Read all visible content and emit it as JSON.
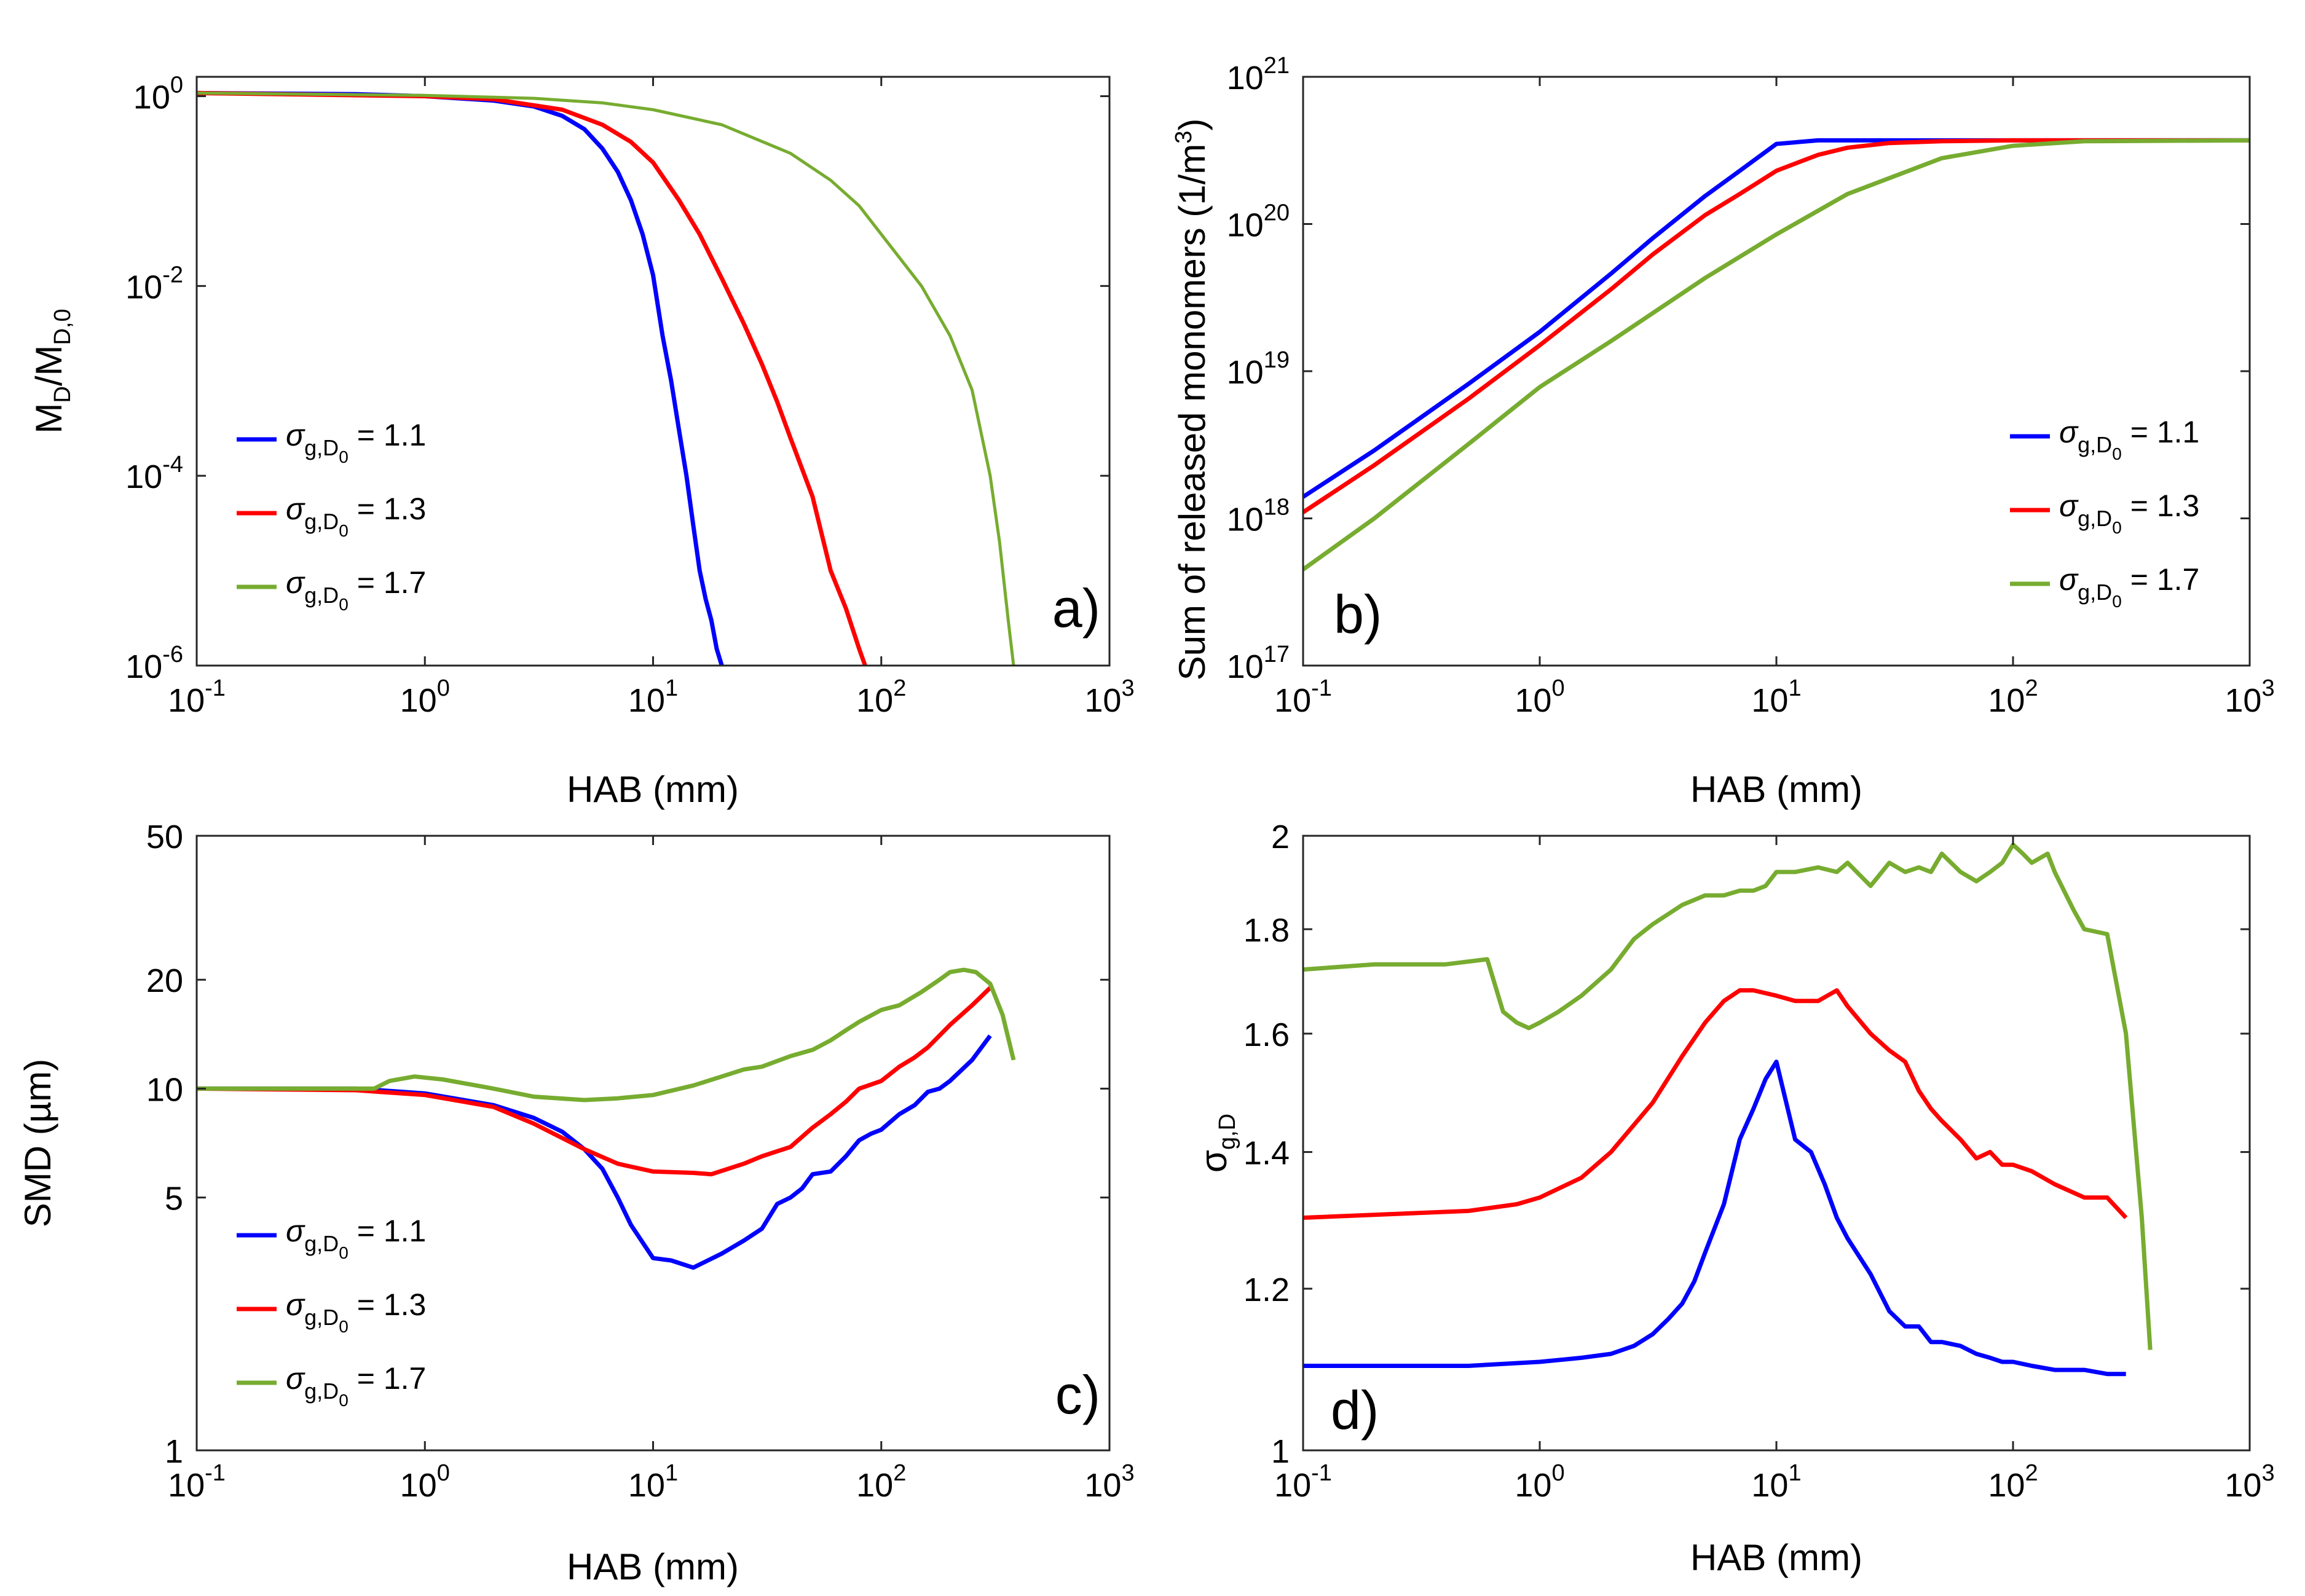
{
  "colors": {
    "series1": "#0000ff",
    "series2": "#ff0000",
    "series3": "#77ac30"
  },
  "legend_value_prefix": "= ",
  "chart_data": [
    {
      "id": "a",
      "type": "line",
      "panel_label": "a)",
      "xlabel": "HAB (mm)",
      "ylabel_main": "M",
      "ylabel_sub1": "D",
      "ylabel_slash": "/M",
      "ylabel_sub2": "D,0",
      "xscale": "log",
      "yscale": "log",
      "xlim": [
        0.1,
        1000
      ],
      "ylim": [
        1e-06,
        1.6
      ],
      "x_ticks": [
        {
          "b": "10",
          "e": "-1"
        },
        {
          "b": "10",
          "e": "0"
        },
        {
          "b": "10",
          "e": "1"
        },
        {
          "b": "10",
          "e": "2"
        },
        {
          "b": "10",
          "e": "3"
        }
      ],
      "y_ticks": [
        {
          "b": "10",
          "e": "-6"
        },
        {
          "b": "10",
          "e": "-4"
        },
        {
          "b": "10",
          "e": "-2"
        },
        {
          "b": "10",
          "e": "0"
        }
      ],
      "legend_position": "center-left",
      "series": [
        {
          "name": "σg,D0 = 1.1",
          "sigma": "σ",
          "sub": "g,D",
          "subsub": "0",
          "value": "1.1",
          "color": "#0000ff",
          "x": [
            0.1,
            0.5,
            1,
            2,
            3,
            4,
            5,
            6,
            7,
            8,
            9,
            10,
            11,
            12,
            13,
            14,
            15,
            16,
            17,
            18,
            19,
            20
          ],
          "y": [
            1.08,
            1.05,
            1.0,
            0.9,
            0.78,
            0.62,
            0.45,
            0.28,
            0.16,
            0.08,
            0.035,
            0.013,
            0.003,
            0.001,
            0.0003,
            0.0001,
            3e-05,
            1e-05,
            5e-06,
            3e-06,
            1.5e-06,
            1e-06
          ]
        },
        {
          "name": "σg,D0 = 1.3",
          "sigma": "σ",
          "sub": "g,D",
          "subsub": "0",
          "value": "1.3",
          "color": "#ff0000",
          "x": [
            0.1,
            1,
            2,
            4,
            6,
            8,
            10,
            13,
            16,
            20,
            25,
            30,
            35,
            40,
            50,
            60,
            70,
            80,
            85
          ],
          "y": [
            1.08,
            1.0,
            0.93,
            0.72,
            0.5,
            0.33,
            0.2,
            0.08,
            0.035,
            0.012,
            0.004,
            0.0015,
            0.0006,
            0.00025,
            6e-05,
            1e-05,
            4e-06,
            1.5e-06,
            1e-06
          ]
        },
        {
          "name": "σg,D0 = 1.7",
          "sigma": "σ",
          "sub": "g,D",
          "subsub": "0",
          "value": "1.7",
          "color": "#77ac30",
          "x": [
            0.1,
            1,
            3,
            6,
            10,
            20,
            40,
            60,
            80,
            100,
            150,
            200,
            250,
            300,
            330,
            360,
            380
          ],
          "y": [
            1.08,
            1.02,
            0.95,
            0.85,
            0.72,
            0.5,
            0.25,
            0.13,
            0.07,
            0.035,
            0.01,
            0.003,
            0.0008,
            0.0001,
            2e-05,
            3e-06,
            1e-06
          ]
        }
      ]
    },
    {
      "id": "b",
      "type": "line",
      "panel_label": "b)",
      "xlabel": "HAB (mm)",
      "ylabel_main": "Sum of released monomers (1/m",
      "ylabel_sup": "3",
      "ylabel_end": ")",
      "xscale": "log",
      "yscale": "log",
      "xlim": [
        0.1,
        1000
      ],
      "ylim": [
        1e+17,
        1e+21
      ],
      "x_ticks": [
        {
          "b": "10",
          "e": "-1"
        },
        {
          "b": "10",
          "e": "0"
        },
        {
          "b": "10",
          "e": "1"
        },
        {
          "b": "10",
          "e": "2"
        },
        {
          "b": "10",
          "e": "3"
        }
      ],
      "y_ticks": [
        {
          "b": "10",
          "e": "17"
        },
        {
          "b": "10",
          "e": "18"
        },
        {
          "b": "10",
          "e": "19"
        },
        {
          "b": "10",
          "e": "20"
        },
        {
          "b": "10",
          "e": "21"
        }
      ],
      "legend_position": "right",
      "series": [
        {
          "name": "σg,D0 = 1.1",
          "sigma": "σ",
          "sub": "g,D",
          "subsub": "0",
          "value": "1.1",
          "color": "#0000ff",
          "x": [
            0.1,
            0.2,
            0.5,
            1,
            2,
            3,
            5,
            7,
            10,
            15,
            1000
          ],
          "y": [
            1.4e+18,
            2.9e+18,
            8.2e+18,
            1.85e+19,
            4.6e+19,
            8e+19,
            1.55e+20,
            2.3e+20,
            3.5e+20,
            3.7e+20,
            3.7e+20
          ]
        },
        {
          "name": "σg,D0 = 1.3",
          "sigma": "σ",
          "sub": "g,D",
          "subsub": "0",
          "value": "1.3",
          "color": "#ff0000",
          "x": [
            0.1,
            0.2,
            0.5,
            1,
            2,
            3,
            5,
            7,
            10,
            15,
            20,
            30,
            50,
            100,
            1000
          ],
          "y": [
            1.1e+18,
            2.3e+18,
            6.5e+18,
            1.5e+19,
            3.6e+19,
            6.2e+19,
            1.15e+20,
            1.6e+20,
            2.3e+20,
            2.95e+20,
            3.3e+20,
            3.55e+20,
            3.65e+20,
            3.7e+20,
            3.7e+20
          ]
        },
        {
          "name": "σg,D0 = 1.7",
          "sigma": "σ",
          "sub": "g,D",
          "subsub": "0",
          "value": "1.7",
          "color": "#77ac30",
          "x": [
            0.1,
            0.2,
            0.5,
            1,
            2,
            5,
            10,
            20,
            50,
            100,
            200,
            1000
          ],
          "y": [
            4.5e+17,
            1e+18,
            3.2e+18,
            7.8e+18,
            1.6e+19,
            4.3e+19,
            8.5e+19,
            1.6e+20,
            2.8e+20,
            3.4e+20,
            3.65e+20,
            3.7e+20
          ]
        }
      ]
    },
    {
      "id": "c",
      "type": "line",
      "panel_label": "c)",
      "xlabel": "HAB (mm)",
      "ylabel_main": "SMD (µm)",
      "xscale": "log",
      "yscale": "log",
      "xlim": [
        0.1,
        1000
      ],
      "ylim": [
        1,
        50
      ],
      "x_ticks": [
        {
          "b": "10",
          "e": "-1"
        },
        {
          "b": "10",
          "e": "0"
        },
        {
          "b": "10",
          "e": "1"
        },
        {
          "b": "10",
          "e": "2"
        },
        {
          "b": "10",
          "e": "3"
        }
      ],
      "y_ticks": [
        {
          "b": "1",
          "e": ""
        },
        {
          "b": "5",
          "e": ""
        },
        {
          "b": "10",
          "e": ""
        },
        {
          "b": "20",
          "e": ""
        },
        {
          "b": "50",
          "e": ""
        }
      ],
      "legend_position": "center-left",
      "series": [
        {
          "name": "σg,D0 = 1.1",
          "sigma": "σ",
          "sub": "g,D",
          "subsub": "0",
          "value": "1.1",
          "color": "#0000ff",
          "x": [
            0.1,
            0.5,
            1,
            2,
            3,
            4,
            5,
            6,
            7,
            8,
            10,
            12,
            15,
            20,
            25,
            30,
            35,
            40,
            45,
            50,
            60,
            70,
            80,
            90,
            100,
            120,
            140,
            160,
            180,
            200,
            250,
            300
          ],
          "y": [
            10,
            10,
            9.7,
            9.0,
            8.3,
            7.6,
            6.8,
            6.0,
            5.0,
            4.2,
            3.4,
            3.35,
            3.2,
            3.5,
            3.8,
            4.1,
            4.8,
            5.0,
            5.3,
            5.8,
            5.9,
            6.5,
            7.2,
            7.5,
            7.7,
            8.5,
            9.0,
            9.8,
            10.0,
            10.5,
            12.0,
            14.0
          ]
        },
        {
          "name": "σg,D0 = 1.3",
          "sigma": "σ",
          "sub": "g,D",
          "subsub": "0",
          "value": "1.3",
          "color": "#ff0000",
          "x": [
            0.1,
            0.5,
            1,
            2,
            3,
            5,
            7,
            10,
            15,
            18,
            25,
            30,
            40,
            50,
            60,
            70,
            80,
            100,
            120,
            140,
            160,
            200,
            250,
            300
          ],
          "y": [
            10,
            9.9,
            9.6,
            8.9,
            8.0,
            6.8,
            6.2,
            5.9,
            5.85,
            5.8,
            6.2,
            6.5,
            6.9,
            7.8,
            8.5,
            9.2,
            10.0,
            10.5,
            11.5,
            12.2,
            13.0,
            15.0,
            17.0,
            19.0
          ]
        },
        {
          "name": "σg,D0 = 1.7",
          "sigma": "σ",
          "sub": "g,D",
          "subsub": "0",
          "value": "1.7",
          "color": "#77ac30",
          "x": [
            0.1,
            0.6,
            0.7,
            0.9,
            1.2,
            2,
            3,
            5,
            7,
            10,
            15,
            20,
            25,
            30,
            40,
            50,
            60,
            70,
            80,
            100,
            120,
            150,
            180,
            200,
            230,
            260,
            300,
            340,
            380
          ],
          "y": [
            10,
            10,
            10.5,
            10.8,
            10.6,
            10.0,
            9.5,
            9.3,
            9.4,
            9.6,
            10.2,
            10.8,
            11.3,
            11.5,
            12.3,
            12.8,
            13.6,
            14.5,
            15.3,
            16.5,
            17.0,
            18.5,
            20.0,
            21.0,
            21.3,
            21.0,
            19.5,
            16.0,
            12.0
          ]
        }
      ]
    },
    {
      "id": "d",
      "type": "line",
      "panel_label": "d)",
      "xlabel": "HAB (mm)",
      "ylabel_main": "σ",
      "ylabel_sub1": "g,D",
      "xscale": "log",
      "yscale": "log",
      "xlim": [
        0.1,
        1000
      ],
      "ylim": [
        1,
        2
      ],
      "x_ticks": [
        {
          "b": "10",
          "e": "-1"
        },
        {
          "b": "10",
          "e": "0"
        },
        {
          "b": "10",
          "e": "1"
        },
        {
          "b": "10",
          "e": "2"
        },
        {
          "b": "10",
          "e": "3"
        }
      ],
      "y_ticks": [
        {
          "b": "1",
          "e": ""
        },
        {
          "b": "1.2",
          "e": ""
        },
        {
          "b": "1.4",
          "e": ""
        },
        {
          "b": "1.6",
          "e": ""
        },
        {
          "b": "1.8",
          "e": ""
        },
        {
          "b": "2",
          "e": ""
        }
      ],
      "legend_position": "none",
      "series": [
        {
          "name": "σg,D0 = 1.1",
          "color": "#0000ff",
          "x": [
            0.1,
            0.5,
            1,
            1.5,
            2,
            2.5,
            3,
            3.5,
            4,
            4.5,
            5,
            6,
            7,
            8,
            9,
            10,
            12,
            14,
            16,
            18,
            20,
            25,
            30,
            35,
            40,
            45,
            50,
            60,
            70,
            80,
            90,
            100,
            120,
            150,
            200,
            250,
            300
          ],
          "y": [
            1.1,
            1.1,
            1.105,
            1.11,
            1.115,
            1.125,
            1.14,
            1.16,
            1.18,
            1.21,
            1.25,
            1.32,
            1.42,
            1.47,
            1.52,
            1.55,
            1.42,
            1.4,
            1.35,
            1.3,
            1.27,
            1.22,
            1.17,
            1.15,
            1.15,
            1.13,
            1.13,
            1.125,
            1.115,
            1.11,
            1.105,
            1.105,
            1.1,
            1.095,
            1.095,
            1.09,
            1.09
          ]
        },
        {
          "name": "σg,D0 = 1.3",
          "color": "#ff0000",
          "x": [
            0.1,
            0.5,
            0.8,
            1,
            1.5,
            2,
            3,
            4,
            5,
            6,
            7,
            8,
            10,
            12,
            15,
            18,
            20,
            25,
            30,
            35,
            40,
            45,
            50,
            60,
            70,
            80,
            90,
            100,
            120,
            150,
            200,
            250,
            300
          ],
          "y": [
            1.3,
            1.31,
            1.32,
            1.33,
            1.36,
            1.4,
            1.48,
            1.56,
            1.62,
            1.66,
            1.68,
            1.68,
            1.67,
            1.66,
            1.66,
            1.68,
            1.65,
            1.6,
            1.57,
            1.55,
            1.5,
            1.47,
            1.45,
            1.42,
            1.39,
            1.4,
            1.38,
            1.38,
            1.37,
            1.35,
            1.33,
            1.33,
            1.3
          ]
        },
        {
          "name": "σg,D0 = 1.7",
          "color": "#77ac30",
          "x": [
            0.1,
            0.2,
            0.4,
            0.6,
            0.7,
            0.8,
            0.9,
            1,
            1.2,
            1.5,
            2,
            2.5,
            3,
            4,
            5,
            6,
            7,
            8,
            9,
            10,
            12,
            15,
            18,
            20,
            25,
            30,
            35,
            40,
            45,
            50,
            60,
            70,
            80,
            90,
            100,
            110,
            120,
            140,
            150,
            180,
            200,
            250,
            300,
            350,
            380
          ],
          "y": [
            1.72,
            1.73,
            1.73,
            1.74,
            1.64,
            1.62,
            1.61,
            1.62,
            1.64,
            1.67,
            1.72,
            1.78,
            1.81,
            1.85,
            1.87,
            1.87,
            1.88,
            1.88,
            1.89,
            1.92,
            1.92,
            1.93,
            1.92,
            1.94,
            1.89,
            1.94,
            1.92,
            1.93,
            1.92,
            1.96,
            1.92,
            1.9,
            1.92,
            1.94,
            1.98,
            1.96,
            1.94,
            1.96,
            1.92,
            1.84,
            1.8,
            1.79,
            1.6,
            1.3,
            1.12
          ]
        }
      ]
    }
  ]
}
